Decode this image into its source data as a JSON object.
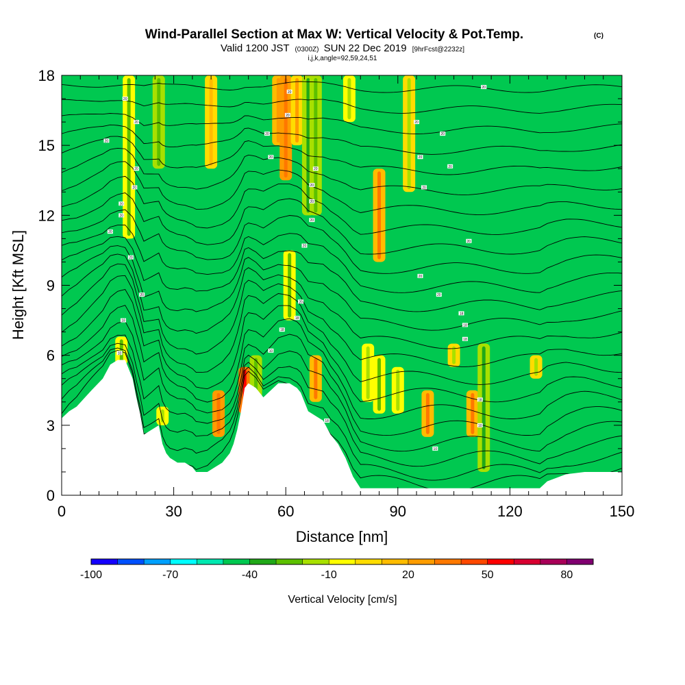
{
  "chart_data": {
    "type": "heatmap",
    "title": "Wind-Parallel Section at Max W: Vertical Velocity & Pot.Temp.",
    "title_mark": "(C)",
    "subtitle": {
      "valid": "Valid 1200 JST",
      "utc": "(0300Z)",
      "date": "SUN 22 Dec 2019",
      "fcst": "[9hrFcst@2232z]"
    },
    "ijk_line": "i,j,k,angle=92,59,24,51",
    "xlabel": "Distance [nm]",
    "ylabel": "Height [Kft MSL]",
    "xlim": [
      0,
      150
    ],
    "ylim": [
      0,
      18
    ],
    "x_ticks": [
      0,
      30,
      60,
      90,
      120,
      150
    ],
    "y_ticks": [
      0,
      3,
      6,
      9,
      12,
      15,
      18
    ],
    "colorbar": {
      "title": "Vertical Velocity [cm/s]",
      "range": [
        -100,
        90
      ],
      "step": 10,
      "labels": [
        -100,
        -70,
        -40,
        -10,
        20,
        50,
        80
      ],
      "colors": [
        "#1400ff",
        "#0050ff",
        "#00a0ff",
        "#00ffff",
        "#00e8b0",
        "#00c850",
        "#20a818",
        "#5cc000",
        "#a8e000",
        "#ffff00",
        "#ffdc00",
        "#ffbc00",
        "#ff9c00",
        "#ff7800",
        "#ff4800",
        "#ff0000",
        "#d80030",
        "#a80058",
        "#800070"
      ]
    },
    "background_level": 5,
    "velocity_features": [
      {
        "x": 16,
        "z0": 5.6,
        "z1": 6.8,
        "w": -25
      },
      {
        "x": 18,
        "z0": 11.0,
        "z1": 18.0,
        "w": -25
      },
      {
        "x": 26,
        "z0": 14.0,
        "z1": 18.0,
        "w": -30
      },
      {
        "x": 27,
        "z0": 3.0,
        "z1": 3.8,
        "w": -20
      },
      {
        "x": 40,
        "z0": 14.0,
        "z1": 18.0,
        "w": 15
      },
      {
        "x": 42,
        "z0": 2.5,
        "z1": 4.5,
        "w": 35
      },
      {
        "x": 49,
        "z0": 3.5,
        "z1": 5.5,
        "w": 50
      },
      {
        "x": 52,
        "z0": 3.5,
        "z1": 6.0,
        "w": -30
      },
      {
        "x": 58,
        "z0": 15.0,
        "z1": 18.0,
        "w": 25
      },
      {
        "x": 60,
        "z0": 13.5,
        "z1": 18.0,
        "w": 35
      },
      {
        "x": 63,
        "z0": 15.0,
        "z1": 18.0,
        "w": 20
      },
      {
        "x": 66,
        "z0": 12.0,
        "z1": 18.0,
        "w": -35
      },
      {
        "x": 68,
        "z0": 12.0,
        "z1": 18.0,
        "w": -30
      },
      {
        "x": 61,
        "z0": 7.5,
        "z1": 10.5,
        "w": -25
      },
      {
        "x": 68,
        "z0": 4.0,
        "z1": 6.0,
        "w": 30
      },
      {
        "x": 77,
        "z0": 16.0,
        "z1": 18.0,
        "w": -20
      },
      {
        "x": 85,
        "z0": 10.0,
        "z1": 14.0,
        "w": 30
      },
      {
        "x": 82,
        "z0": 4.0,
        "z1": 6.5,
        "w": -20
      },
      {
        "x": 85,
        "z0": 3.5,
        "z1": 6.0,
        "w": -25
      },
      {
        "x": 90,
        "z0": 3.5,
        "z1": 5.5,
        "w": -20
      },
      {
        "x": 93,
        "z0": 13.0,
        "z1": 18.0,
        "w": -15
      },
      {
        "x": 98,
        "z0": 2.5,
        "z1": 4.5,
        "w": 30
      },
      {
        "x": 105,
        "z0": 5.5,
        "z1": 6.5,
        "w": -15
      },
      {
        "x": 110,
        "z0": 2.5,
        "z1": 4.5,
        "w": 30
      },
      {
        "x": 113,
        "z0": 1.0,
        "z1": 6.5,
        "w": -35
      },
      {
        "x": 127,
        "z0": 5.0,
        "z1": 6.0,
        "w": -15
      }
    ],
    "terrain": [
      [
        0,
        3.3
      ],
      [
        2,
        3.6
      ],
      [
        4,
        3.8
      ],
      [
        8,
        4.5
      ],
      [
        11,
        5.0
      ],
      [
        13,
        5.6
      ],
      [
        15,
        5.8
      ],
      [
        17,
        5.8
      ],
      [
        19,
        5.0
      ],
      [
        20,
        4.2
      ],
      [
        21,
        3.5
      ],
      [
        22,
        2.6
      ],
      [
        24,
        2.8
      ],
      [
        26,
        3.0
      ],
      [
        27,
        2.2
      ],
      [
        28,
        1.8
      ],
      [
        29,
        1.6
      ],
      [
        31,
        1.4
      ],
      [
        33,
        1.4
      ],
      [
        35,
        1.2
      ],
      [
        36,
        1.0
      ],
      [
        39,
        1.0
      ],
      [
        41,
        1.2
      ],
      [
        43,
        1.4
      ],
      [
        45,
        1.8
      ],
      [
        46,
        2.2
      ],
      [
        47,
        2.8
      ],
      [
        48,
        3.6
      ],
      [
        49,
        4.6
      ],
      [
        50,
        4.8
      ],
      [
        52,
        4.6
      ],
      [
        54,
        4.2
      ],
      [
        56,
        4.5
      ],
      [
        58,
        4.8
      ],
      [
        61,
        4.8
      ],
      [
        63,
        4.6
      ],
      [
        64,
        4.4
      ],
      [
        65,
        4.0
      ],
      [
        66,
        3.6
      ],
      [
        68,
        3.4
      ],
      [
        70,
        3.2
      ],
      [
        72,
        2.6
      ],
      [
        74,
        2.2
      ],
      [
        76,
        1.6
      ],
      [
        78,
        0.8
      ],
      [
        80,
        0.3
      ],
      [
        83,
        0.3
      ],
      [
        90,
        0.3
      ],
      [
        110,
        0.3
      ],
      [
        128,
        0.3
      ],
      [
        130,
        0.6
      ],
      [
        135,
        0.9
      ],
      [
        140,
        1.0
      ],
      [
        150,
        1.0
      ]
    ],
    "isentrope_count": 24,
    "contour_labels": [
      {
        "x": 17,
        "z": 17.0,
        "t": "20"
      },
      {
        "x": 20,
        "z": 16.0,
        "t": "20"
      },
      {
        "x": 12,
        "z": 15.2,
        "t": "20"
      },
      {
        "x": 20,
        "z": 14.0,
        "t": "20"
      },
      {
        "x": 19.5,
        "z": 13.2,
        "t": "20"
      },
      {
        "x": 16,
        "z": 12.5,
        "t": "20"
      },
      {
        "x": 16,
        "z": 12.0,
        "t": "20"
      },
      {
        "x": 13,
        "z": 11.3,
        "t": "20"
      },
      {
        "x": 18.5,
        "z": 10.2,
        "t": "20"
      },
      {
        "x": 21.5,
        "z": 8.6,
        "t": "20"
      },
      {
        "x": 16.5,
        "z": 7.5,
        "t": "18"
      },
      {
        "x": 15.5,
        "z": 6.1,
        "t": "10"
      },
      {
        "x": 61,
        "z": 17.3,
        "t": "20"
      },
      {
        "x": 60.5,
        "z": 16.3,
        "t": "20"
      },
      {
        "x": 55,
        "z": 15.5,
        "t": "20"
      },
      {
        "x": 56,
        "z": 14.5,
        "t": "20"
      },
      {
        "x": 68,
        "z": 14.0,
        "t": "20"
      },
      {
        "x": 67,
        "z": 13.3,
        "t": "20"
      },
      {
        "x": 67,
        "z": 12.6,
        "t": "20"
      },
      {
        "x": 67,
        "z": 11.8,
        "t": "20"
      },
      {
        "x": 65,
        "z": 10.7,
        "t": "20"
      },
      {
        "x": 64,
        "z": 8.3,
        "t": "20"
      },
      {
        "x": 63,
        "z": 7.6,
        "t": "18"
      },
      {
        "x": 59,
        "z": 7.1,
        "t": "18"
      },
      {
        "x": 56,
        "z": 6.2,
        "t": "10"
      },
      {
        "x": 71,
        "z": 3.2,
        "t": "18"
      },
      {
        "x": 113,
        "z": 17.5,
        "t": "20"
      },
      {
        "x": 95,
        "z": 16.0,
        "t": "20"
      },
      {
        "x": 102,
        "z": 15.5,
        "t": "20"
      },
      {
        "x": 96,
        "z": 14.5,
        "t": "20"
      },
      {
        "x": 104,
        "z": 14.1,
        "t": "20"
      },
      {
        "x": 97,
        "z": 13.2,
        "t": "20"
      },
      {
        "x": 109,
        "z": 10.9,
        "t": "20"
      },
      {
        "x": 96,
        "z": 9.4,
        "t": "20"
      },
      {
        "x": 101,
        "z": 8.6,
        "t": "20"
      },
      {
        "x": 107,
        "z": 7.8,
        "t": "18"
      },
      {
        "x": 108,
        "z": 7.3,
        "t": "18"
      },
      {
        "x": 108,
        "z": 6.7,
        "t": "18"
      },
      {
        "x": 112,
        "z": 4.1,
        "t": "18"
      },
      {
        "x": 112,
        "z": 3.0,
        "t": "10"
      },
      {
        "x": 100,
        "z": 2.0,
        "t": "10"
      }
    ]
  }
}
